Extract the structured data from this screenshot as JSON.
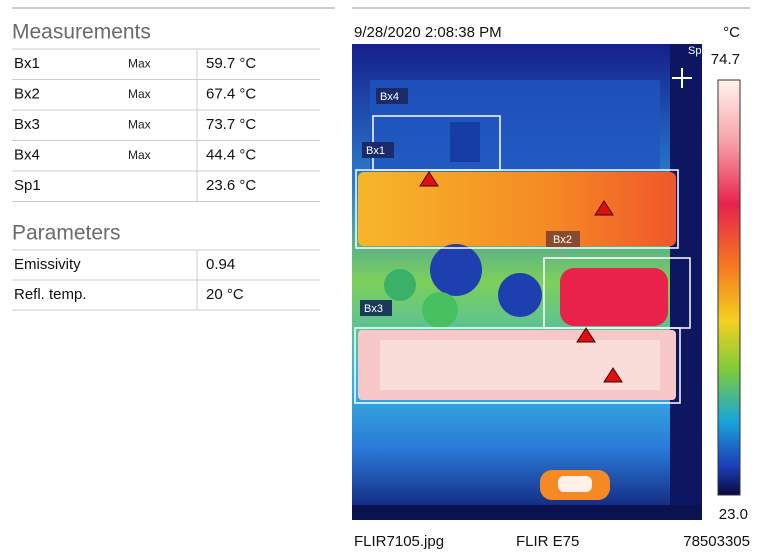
{
  "measurements": {
    "title": "Measurements",
    "rows": [
      {
        "name": "Bx1",
        "type": "Max",
        "value": "59.7 °C"
      },
      {
        "name": "Bx2",
        "type": "Max",
        "value": "67.4 °C"
      },
      {
        "name": "Bx3",
        "type": "Max",
        "value": "73.7 °C"
      },
      {
        "name": "Bx4",
        "type": "Max",
        "value": "44.4 °C"
      },
      {
        "name": "Sp1",
        "value": "23.6 °C"
      }
    ]
  },
  "parameters": {
    "title": "Parameters",
    "rows": [
      {
        "name": "Emissivity",
        "value": "0.94"
      },
      {
        "name": "Refl. temp.",
        "value": "20 °C"
      }
    ]
  },
  "image": {
    "timestamp": "9/28/2020 2:08:38 PM",
    "unit": "°C",
    "scale_max": "74.7",
    "scale_min": "23.0",
    "box_labels": [
      "Bx4",
      "Bx1",
      "Bx2",
      "Bx3"
    ],
    "spot_label": "Sp",
    "filename": "FLIR7105.jpg",
    "camera": "FLIR E75",
    "serial": "78503305"
  }
}
